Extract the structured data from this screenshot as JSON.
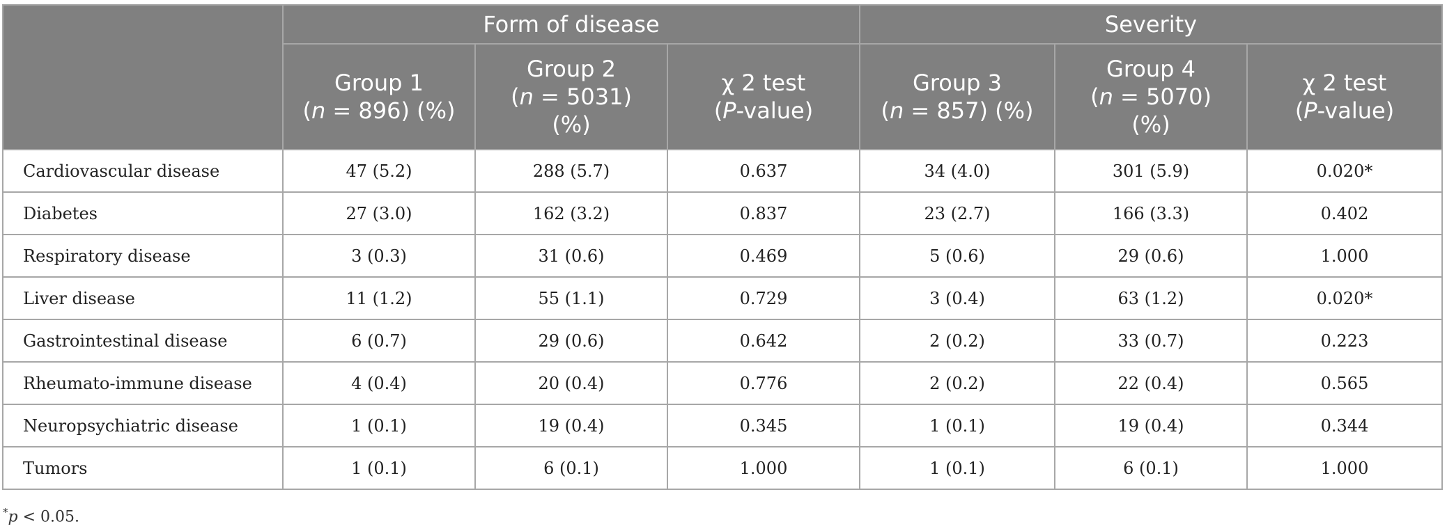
{
  "header": {
    "groups": [
      "Form of disease",
      "Severity"
    ],
    "columns": [
      {
        "line1": "Group 1",
        "pre": "(",
        "italic": "n",
        "post": " = 896) (%)",
        "line3": ""
      },
      {
        "line1": "Group 2",
        "pre": "(",
        "italic": "n",
        "post": " = 5031)",
        "line3": "(%)"
      },
      {
        "line1": "χ 2 test",
        "pre": "(",
        "italic": "P",
        "post": "-value)",
        "line3": ""
      },
      {
        "line1": "Group 3",
        "pre": "(",
        "italic": "n",
        "post": " = 857) (%)",
        "line3": ""
      },
      {
        "line1": "Group 4",
        "pre": "(",
        "italic": "n",
        "post": " = 5070)",
        "line3": "(%)"
      },
      {
        "line1": "χ 2 test",
        "pre": "(",
        "italic": "P",
        "post": "-value)",
        "line3": ""
      }
    ]
  },
  "rows": [
    {
      "label": "Cardiovascular disease",
      "cells": [
        "47 (5.2)",
        "288 (5.7)",
        "0.637",
        "34 (4.0)",
        "301 (5.9)",
        "0.020*"
      ]
    },
    {
      "label": "Diabetes",
      "cells": [
        "27 (3.0)",
        "162 (3.2)",
        "0.837",
        "23 (2.7)",
        "166 (3.3)",
        "0.402"
      ]
    },
    {
      "label": "Respiratory disease",
      "cells": [
        "3 (0.3)",
        "31 (0.6)",
        "0.469",
        "5 (0.6)",
        "29 (0.6)",
        "1.000"
      ]
    },
    {
      "label": "Liver disease",
      "cells": [
        "11 (1.2)",
        "55 (1.1)",
        "0.729",
        "3 (0.4)",
        "63 (1.2)",
        "0.020*"
      ]
    },
    {
      "label": "Gastrointestinal disease",
      "cells": [
        "6 (0.7)",
        "29 (0.6)",
        "0.642",
        "2 (0.2)",
        "33 (0.7)",
        "0.223"
      ]
    },
    {
      "label": "Rheumato-immune disease",
      "cells": [
        "4 (0.4)",
        "20 (0.4)",
        "0.776",
        "2 (0.2)",
        "22 (0.4)",
        "0.565"
      ]
    },
    {
      "label": "Neuropsychiatric disease",
      "cells": [
        "1 (0.1)",
        "19 (0.4)",
        "0.345",
        "1 (0.1)",
        "19 (0.4)",
        "0.344"
      ]
    },
    {
      "label": "Tumors",
      "cells": [
        "1 (0.1)",
        "6 (0.1)",
        "1.000",
        "1 (0.1)",
        "6 (0.1)",
        "1.000"
      ]
    }
  ],
  "footnote": {
    "mark": "*",
    "italic": "p",
    "text": " < 0.05."
  }
}
